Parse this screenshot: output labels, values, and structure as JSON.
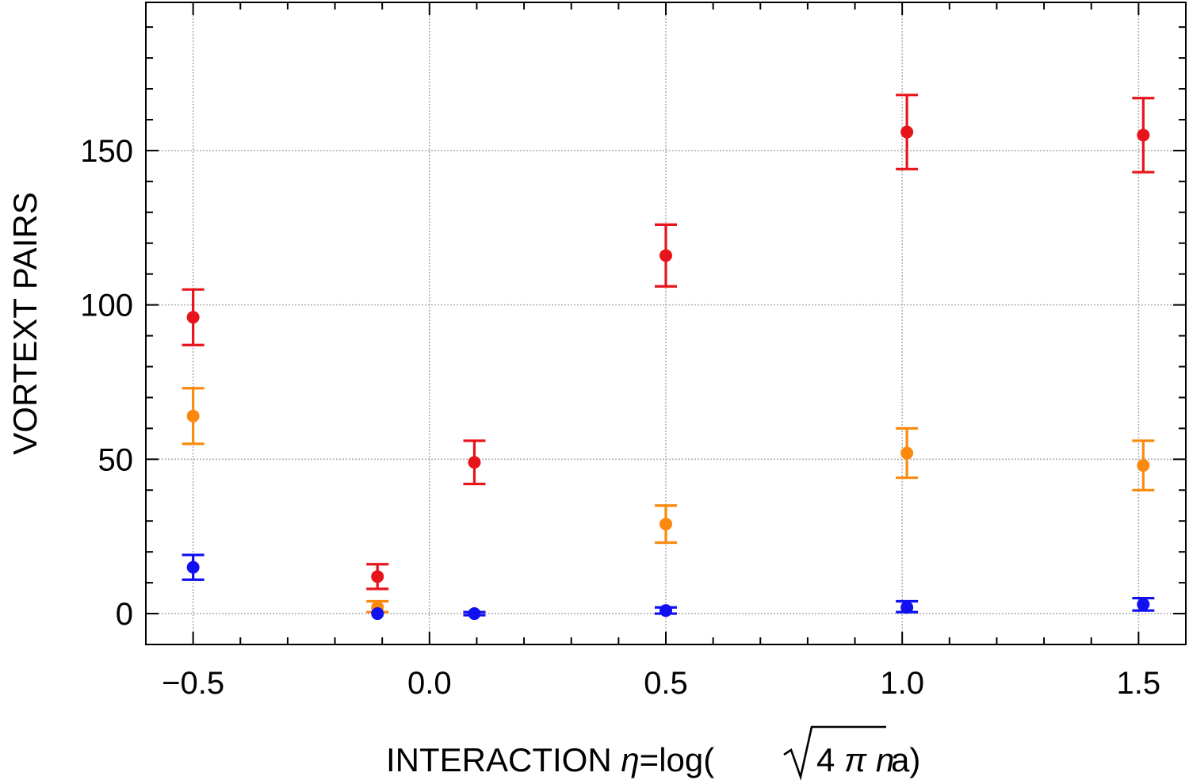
{
  "chart_data": {
    "type": "scatter",
    "title": "",
    "xlabel": {
      "prefix": "INTERACTION ",
      "eta": "η",
      "eq": "=log(",
      "sqrt_body": "4 ",
      "pi": "π",
      "n": "n",
      "suffix": "a)"
    },
    "ylabel": "VORTEXT PAIRS",
    "xlim": [
      -0.6,
      1.6
    ],
    "ylim": [
      -10,
      198
    ],
    "grid": true,
    "x_ticks": [
      -0.5,
      0.0,
      0.5,
      1.0,
      1.5
    ],
    "x_tick_labels": [
      "−0.5",
      "0.0",
      "0.5",
      "1.0",
      "1.5"
    ],
    "y_ticks": [
      0,
      50,
      100,
      150
    ],
    "y_tick_labels": [
      "0",
      "50",
      "100",
      "150"
    ],
    "series": [
      {
        "name": "red",
        "color": "#e8141b",
        "points": [
          {
            "x": -0.5,
            "y": 96,
            "lo": 87,
            "hi": 105
          },
          {
            "x": -0.11,
            "y": 12,
            "lo": 8,
            "hi": 16
          },
          {
            "x": 0.095,
            "y": 49,
            "lo": 42,
            "hi": 56
          },
          {
            "x": 0.5,
            "y": 116,
            "lo": 106,
            "hi": 126
          },
          {
            "x": 1.01,
            "y": 156,
            "lo": 144,
            "hi": 168
          },
          {
            "x": 1.51,
            "y": 155,
            "lo": 143,
            "hi": 167
          }
        ]
      },
      {
        "name": "orange",
        "color": "#fa8a0f",
        "points": [
          {
            "x": -0.5,
            "y": 64,
            "lo": 55,
            "hi": 73
          },
          {
            "x": -0.11,
            "y": 2,
            "lo": 0.5,
            "hi": 4
          },
          {
            "x": 0.5,
            "y": 29,
            "lo": 23,
            "hi": 35
          },
          {
            "x": 1.01,
            "y": 52,
            "lo": 44,
            "hi": 60
          },
          {
            "x": 1.51,
            "y": 48,
            "lo": 40,
            "hi": 56
          }
        ]
      },
      {
        "name": "blue",
        "color": "#1010f0",
        "points": [
          {
            "x": -0.5,
            "y": 15,
            "lo": 11,
            "hi": 19
          },
          {
            "x": -0.11,
            "y": 0,
            "lo": null,
            "hi": null
          },
          {
            "x": 0.095,
            "y": 0,
            "lo": -0.5,
            "hi": 0.5
          },
          {
            "x": 0.5,
            "y": 1,
            "lo": 0,
            "hi": 2
          },
          {
            "x": 1.01,
            "y": 2,
            "lo": 0.5,
            "hi": 4
          },
          {
            "x": 1.51,
            "y": 3,
            "lo": 1,
            "hi": 5
          }
        ]
      }
    ]
  }
}
